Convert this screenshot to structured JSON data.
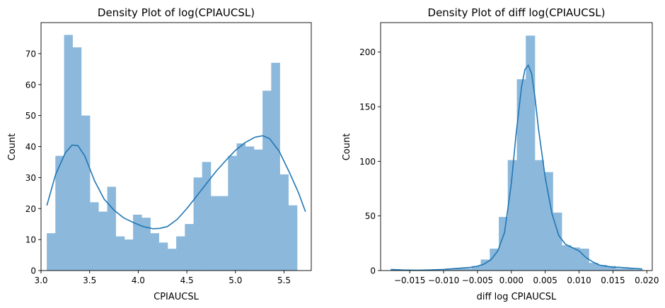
{
  "chart_data": [
    {
      "type": "bar",
      "subtype": "histogram-with-kde",
      "title": "Density Plot of log(CPIAUCSL)",
      "xlabel": "CPIAUCSL",
      "ylabel": "Count",
      "xlim": [
        3.0,
        5.78
      ],
      "ylim": [
        0,
        80
      ],
      "xticks": [
        3.0,
        3.5,
        4.0,
        4.5,
        5.0,
        5.5
      ],
      "xtick_labels": [
        "3.0",
        "3.5",
        "4.0",
        "4.5",
        "5.0",
        "5.5"
      ],
      "yticks": [
        0,
        10,
        20,
        30,
        40,
        50,
        60,
        70
      ],
      "ytick_labels": [
        "0",
        "10",
        "20",
        "30",
        "40",
        "50",
        "60",
        "70"
      ],
      "bin_start": 3.06,
      "bin_width": 0.0888,
      "values": [
        12,
        37,
        76,
        72,
        50,
        22,
        19,
        27,
        11,
        10,
        18,
        17,
        12,
        9,
        7,
        11,
        15,
        30,
        35,
        24,
        24,
        37,
        41,
        40,
        39,
        58,
        67,
        31,
        21
      ],
      "kde": {
        "x": [
          3.06,
          3.15,
          3.25,
          3.32,
          3.38,
          3.45,
          3.55,
          3.65,
          3.75,
          3.85,
          3.95,
          4.05,
          4.15,
          4.22,
          4.3,
          4.4,
          4.5,
          4.6,
          4.7,
          4.8,
          4.9,
          5.0,
          5.1,
          5.2,
          5.28,
          5.35,
          5.45,
          5.55,
          5.65,
          5.72
        ],
        "y": [
          21,
          31,
          38,
          40.5,
          40.3,
          37,
          29,
          23,
          19.5,
          17,
          15.5,
          14.2,
          13.5,
          13.6,
          14.2,
          16.5,
          20,
          24,
          28,
          32,
          35.5,
          38.8,
          41.3,
          43,
          43.5,
          42.6,
          38.5,
          32,
          25,
          19
        ]
      },
      "bar_color": "#8cb8db",
      "line_color": "#1f77b4"
    },
    {
      "type": "bar",
      "subtype": "histogram-with-kde",
      "title": "Density Plot of diff log(CPIAUCSL)",
      "xlabel": "diff log CPIAUCSL",
      "ylabel": "Count",
      "xlim": [
        -0.0193,
        0.0208
      ],
      "ylim": [
        0,
        227
      ],
      "xticks": [
        -0.015,
        -0.01,
        -0.005,
        0.0,
        0.005,
        0.01,
        0.015,
        0.02
      ],
      "xtick_labels": [
        "−0.015",
        "−0.010",
        "−0.005",
        "0.000",
        "0.005",
        "0.010",
        "0.015",
        "0.020"
      ],
      "yticks": [
        0,
        50,
        100,
        150,
        200
      ],
      "ytick_labels": [
        "0",
        "50",
        "100",
        "150",
        "200"
      ],
      "bin_start": -0.0178,
      "bin_width": 0.00133,
      "values": [
        1,
        0,
        0,
        0,
        1,
        0,
        1,
        2,
        2,
        4,
        10,
        20,
        49,
        101,
        175,
        215,
        101,
        90,
        53,
        23,
        21,
        20,
        7,
        5,
        4,
        2,
        2,
        1,
        0
      ],
      "kde": {
        "x": [
          -0.0178,
          -0.016,
          -0.014,
          -0.012,
          -0.01,
          -0.008,
          -0.006,
          -0.005,
          -0.004,
          -0.003,
          -0.002,
          -0.001,
          0.0,
          0.0007,
          0.0015,
          0.002,
          0.0025,
          0.003,
          0.0035,
          0.004,
          0.005,
          0.006,
          0.007,
          0.008,
          0.009,
          0.01,
          0.011,
          0.012,
          0.013,
          0.014,
          0.015,
          0.016,
          0.017,
          0.018,
          0.0193
        ],
        "y": [
          1,
          0.5,
          0.3,
          0.5,
          1,
          2,
          3,
          4,
          6,
          10,
          18,
          35,
          80,
          125,
          168,
          184,
          188,
          180,
          158,
          130,
          85,
          52,
          32,
          24,
          21,
          18,
          12,
          8,
          5,
          4,
          3,
          3,
          2.5,
          2,
          1.5
        ]
      },
      "bar_color": "#8cb8db",
      "line_color": "#1f77b4"
    }
  ]
}
